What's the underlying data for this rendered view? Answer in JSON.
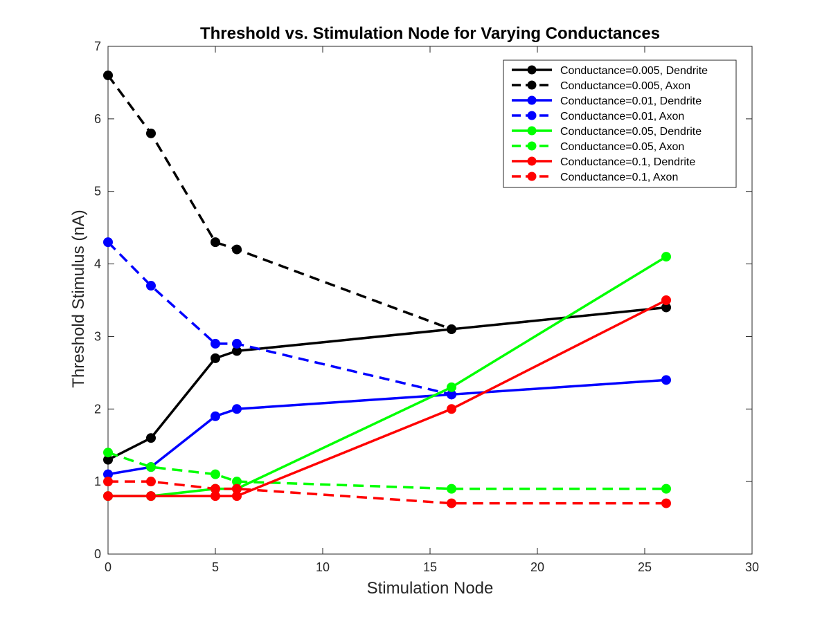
{
  "chart_data": {
    "type": "line",
    "title": "Threshold vs. Stimulation Node for Varying Conductances",
    "xlabel": "Stimulation Node",
    "ylabel": "Threshold Stimulus (nA)",
    "xlim": [
      0,
      30
    ],
    "ylim": [
      0,
      7
    ],
    "xticks": [
      0,
      5,
      10,
      15,
      20,
      25,
      30
    ],
    "yticks": [
      0,
      1,
      2,
      3,
      4,
      5,
      6,
      7
    ],
    "grid": false,
    "legend_position": "top-right",
    "x": [
      0,
      2,
      5,
      6,
      16,
      26
    ],
    "series": [
      {
        "name": "Conductance=0.005, Dendrite",
        "color": "#000000",
        "dash": "solid",
        "y": [
          1.3,
          1.6,
          2.7,
          2.8,
          3.1,
          3.4
        ]
      },
      {
        "name": "Conductance=0.005, Axon",
        "color": "#000000",
        "dash": "dashed",
        "y": [
          6.6,
          5.8,
          4.3,
          4.2,
          3.1,
          null
        ]
      },
      {
        "name": "Conductance=0.01, Dendrite",
        "color": "#0000ff",
        "dash": "solid",
        "y": [
          1.1,
          1.2,
          1.9,
          2.0,
          2.2,
          2.4
        ]
      },
      {
        "name": "Conductance=0.01, Axon",
        "color": "#0000ff",
        "dash": "dashed",
        "y": [
          4.3,
          3.7,
          2.9,
          2.9,
          2.2,
          null
        ]
      },
      {
        "name": "Conductance=0.05, Dendrite",
        "color": "#00ff00",
        "dash": "solid",
        "y": [
          0.8,
          0.8,
          0.9,
          0.9,
          2.3,
          4.1
        ]
      },
      {
        "name": "Conductance=0.05, Axon",
        "color": "#00ff00",
        "dash": "dashed",
        "y": [
          1.4,
          1.2,
          1.1,
          1.0,
          0.9,
          0.9
        ]
      },
      {
        "name": "Conductance=0.1, Dendrite",
        "color": "#ff0000",
        "dash": "solid",
        "y": [
          0.8,
          0.8,
          0.8,
          0.8,
          2.0,
          3.5
        ]
      },
      {
        "name": "Conductance=0.1, Axon",
        "color": "#ff0000",
        "dash": "dashed",
        "y": [
          1.0,
          1.0,
          0.9,
          0.9,
          0.7,
          0.7
        ]
      }
    ]
  }
}
